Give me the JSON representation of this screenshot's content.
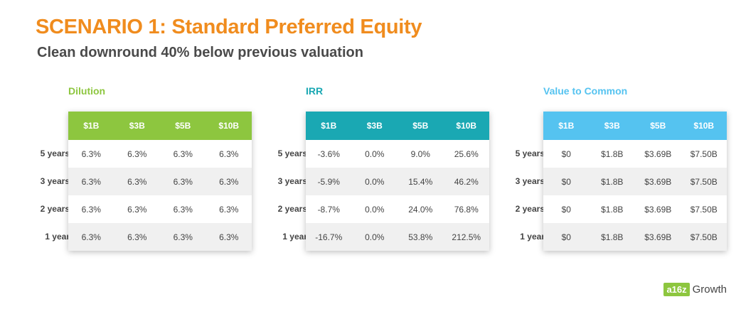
{
  "header": {
    "title": "SCENARIO 1: Standard Preferred Equity",
    "subtitle": "Clean downround 40% below previous valuation"
  },
  "colors": {
    "title": "#f08c1e",
    "dilution": "#8dc63f",
    "irr": "#1aa8b3",
    "value": "#55c3f0"
  },
  "row_labels": [
    "5 years",
    "3 years",
    "2 years",
    "1 year"
  ],
  "tables": [
    {
      "title": "Dilution",
      "columns": [
        "$1B",
        "$3B",
        "$5B",
        "$10B"
      ],
      "rows": [
        [
          "6.3%",
          "6.3%",
          "6.3%",
          "6.3%"
        ],
        [
          "6.3%",
          "6.3%",
          "6.3%",
          "6.3%"
        ],
        [
          "6.3%",
          "6.3%",
          "6.3%",
          "6.3%"
        ],
        [
          "6.3%",
          "6.3%",
          "6.3%",
          "6.3%"
        ]
      ]
    },
    {
      "title": "IRR",
      "columns": [
        "$1B",
        "$3B",
        "$5B",
        "$10B"
      ],
      "rows": [
        [
          "-3.6%",
          "0.0%",
          "9.0%",
          "25.6%"
        ],
        [
          "-5.9%",
          "0.0%",
          "15.4%",
          "46.2%"
        ],
        [
          "-8.7%",
          "0.0%",
          "24.0%",
          "76.8%"
        ],
        [
          "-16.7%",
          "0.0%",
          "53.8%",
          "212.5%"
        ]
      ]
    },
    {
      "title": "Value to Common",
      "columns": [
        "$1B",
        "$3B",
        "$5B",
        "$10B"
      ],
      "rows": [
        [
          "$0",
          "$1.8B",
          "$3.69B",
          "$7.50B"
        ],
        [
          "$0",
          "$1.8B",
          "$3.69B",
          "$7.50B"
        ],
        [
          "$0",
          "$1.8B",
          "$3.69B",
          "$7.50B"
        ],
        [
          "$0",
          "$1.8B",
          "$3.69B",
          "$7.50B"
        ]
      ]
    }
  ],
  "logo": {
    "mark": "a16z",
    "text": "Growth"
  }
}
